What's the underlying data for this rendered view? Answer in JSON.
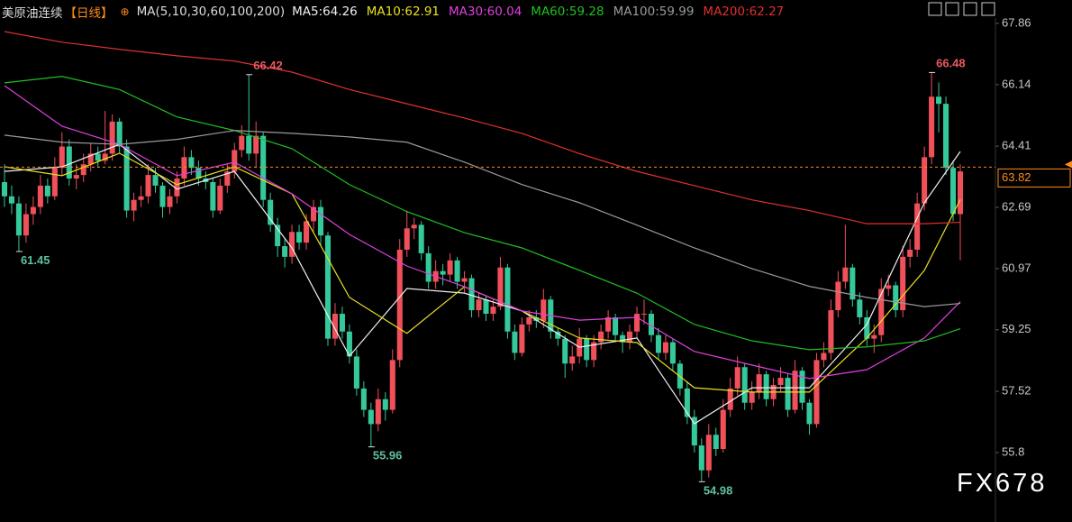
{
  "chart_data": {
    "type": "candlestick",
    "title": "美原油连续",
    "period": "【日线】",
    "indicator": "MA(5,10,30,60,100,200)",
    "watermark": "FX678",
    "up_color": "#f0505a",
    "down_color": "#34c89a",
    "last_price": 63.82,
    "last_price_color": "#ff8c1a",
    "ylim": [
      54.33,
      68.01
    ],
    "yticks": [
      67.86,
      66.14,
      64.41,
      62.69,
      60.97,
      59.25,
      57.52,
      55.8
    ],
    "annotations": [
      66.42,
      61.45,
      55.96,
      54.98,
      66.48
    ],
    "candles": [
      [
        63.4,
        63.9,
        62.7,
        63.0
      ],
      [
        63.0,
        63.3,
        62.5,
        62.8
      ],
      [
        62.8,
        63.0,
        61.45,
        61.9
      ],
      [
        61.9,
        62.8,
        61.7,
        62.5
      ],
      [
        62.5,
        63.0,
        62.2,
        62.7
      ],
      [
        62.7,
        63.6,
        62.5,
        63.3
      ],
      [
        63.3,
        63.5,
        62.8,
        63.0
      ],
      [
        63.0,
        64.1,
        62.9,
        63.8
      ],
      [
        63.8,
        64.8,
        63.6,
        64.4
      ],
      [
        64.4,
        64.6,
        63.3,
        63.5
      ],
      [
        63.5,
        63.9,
        63.2,
        63.6
      ],
      [
        63.6,
        64.2,
        63.4,
        63.9
      ],
      [
        63.9,
        64.5,
        63.7,
        64.2
      ],
      [
        64.2,
        64.4,
        63.8,
        64.0
      ],
      [
        64.0,
        65.4,
        63.9,
        64.2
      ],
      [
        64.2,
        65.3,
        64.0,
        65.1
      ],
      [
        65.1,
        65.2,
        64.2,
        64.4
      ],
      [
        64.4,
        64.6,
        62.4,
        62.6
      ],
      [
        62.6,
        63.1,
        62.3,
        62.9
      ],
      [
        62.9,
        63.3,
        62.7,
        63.0
      ],
      [
        63.0,
        63.9,
        62.8,
        63.6
      ],
      [
        63.6,
        63.8,
        63.1,
        63.3
      ],
      [
        63.3,
        63.4,
        62.4,
        62.7
      ],
      [
        62.7,
        63.2,
        62.5,
        63.0
      ],
      [
        63.0,
        63.7,
        62.8,
        63.5
      ],
      [
        63.5,
        64.4,
        63.3,
        64.1
      ],
      [
        64.1,
        64.3,
        63.6,
        63.8
      ],
      [
        63.8,
        64.0,
        63.3,
        63.5
      ],
      [
        63.5,
        63.7,
        63.2,
        63.4
      ],
      [
        63.4,
        63.5,
        62.4,
        62.6
      ],
      [
        62.6,
        63.5,
        62.5,
        63.3
      ],
      [
        63.3,
        63.9,
        63.1,
        63.7
      ],
      [
        63.7,
        64.5,
        63.5,
        64.3
      ],
      [
        64.3,
        65.0,
        64.1,
        64.7
      ],
      [
        64.7,
        66.42,
        64.0,
        64.2
      ],
      [
        64.2,
        65.1,
        63.8,
        64.7
      ],
      [
        64.7,
        64.8,
        62.7,
        62.9
      ],
      [
        62.9,
        63.1,
        62.0,
        62.2
      ],
      [
        62.2,
        62.4,
        61.3,
        61.6
      ],
      [
        61.6,
        61.8,
        61.0,
        61.3
      ],
      [
        61.3,
        62.2,
        61.1,
        62.0
      ],
      [
        62.0,
        62.2,
        61.5,
        61.7
      ],
      [
        61.7,
        62.5,
        61.5,
        62.3
      ],
      [
        62.3,
        62.9,
        62.0,
        62.7
      ],
      [
        62.7,
        62.9,
        61.6,
        61.9
      ],
      [
        61.9,
        62.0,
        58.8,
        59.0
      ],
      [
        59.0,
        60.0,
        58.8,
        59.7
      ],
      [
        59.7,
        59.9,
        59.0,
        59.2
      ],
      [
        59.2,
        59.4,
        58.3,
        58.5
      ],
      [
        58.5,
        58.7,
        57.4,
        57.6
      ],
      [
        57.6,
        57.8,
        56.8,
        57.0
      ],
      [
        57.0,
        57.2,
        55.96,
        56.6
      ],
      [
        56.6,
        57.6,
        56.4,
        57.3
      ],
      [
        57.3,
        57.5,
        56.7,
        57.0
      ],
      [
        57.0,
        58.7,
        56.9,
        58.4
      ],
      [
        58.4,
        61.8,
        58.2,
        61.5
      ],
      [
        61.5,
        62.6,
        61.3,
        62.1
      ],
      [
        62.1,
        62.4,
        61.8,
        62.2
      ],
      [
        62.2,
        62.3,
        61.2,
        61.4
      ],
      [
        61.4,
        61.6,
        60.4,
        60.6
      ],
      [
        60.6,
        61.2,
        60.4,
        60.9
      ],
      [
        60.9,
        61.1,
        60.5,
        60.8
      ],
      [
        60.8,
        61.4,
        60.6,
        61.2
      ],
      [
        61.2,
        61.3,
        60.4,
        60.6
      ],
      [
        60.6,
        60.9,
        60.3,
        60.7
      ],
      [
        60.7,
        60.8,
        59.6,
        59.8
      ],
      [
        59.8,
        60.3,
        59.6,
        60.1
      ],
      [
        60.1,
        60.2,
        59.5,
        59.7
      ],
      [
        59.7,
        60.1,
        59.5,
        59.9
      ],
      [
        59.9,
        61.3,
        59.8,
        61.0
      ],
      [
        61.0,
        61.1,
        59.0,
        59.2
      ],
      [
        59.2,
        59.4,
        58.4,
        58.6
      ],
      [
        58.6,
        59.6,
        58.5,
        59.4
      ],
      [
        59.4,
        59.8,
        59.2,
        59.6
      ],
      [
        59.6,
        59.8,
        59.3,
        59.5
      ],
      [
        59.5,
        60.4,
        59.3,
        60.1
      ],
      [
        60.1,
        60.2,
        59.0,
        59.2
      ],
      [
        59.2,
        59.3,
        58.8,
        59.0
      ],
      [
        59.0,
        59.1,
        57.9,
        58.3
      ],
      [
        58.3,
        58.8,
        58.1,
        58.5
      ],
      [
        58.5,
        59.3,
        58.3,
        59.0
      ],
      [
        59.0,
        59.1,
        58.2,
        58.4
      ],
      [
        58.4,
        59.1,
        58.2,
        58.9
      ],
      [
        58.9,
        59.4,
        58.7,
        59.2
      ],
      [
        59.2,
        59.8,
        59.0,
        59.6
      ],
      [
        59.6,
        59.7,
        58.9,
        59.1
      ],
      [
        59.1,
        59.2,
        58.6,
        58.9
      ],
      [
        58.9,
        59.4,
        58.7,
        59.2
      ],
      [
        59.2,
        59.9,
        59.0,
        59.7
      ],
      [
        59.7,
        60.1,
        59.4,
        59.7
      ],
      [
        59.7,
        59.8,
        58.9,
        59.1
      ],
      [
        59.1,
        59.3,
        58.4,
        58.6
      ],
      [
        58.6,
        59.1,
        58.4,
        58.9
      ],
      [
        58.9,
        59.0,
        58.1,
        58.3
      ],
      [
        58.3,
        58.4,
        57.4,
        57.6
      ],
      [
        57.6,
        57.8,
        56.6,
        56.8
      ],
      [
        56.8,
        57.0,
        55.8,
        56.0
      ],
      [
        56.0,
        56.2,
        54.98,
        55.3
      ],
      [
        55.3,
        56.6,
        55.1,
        56.3
      ],
      [
        56.3,
        56.5,
        55.7,
        55.9
      ],
      [
        55.9,
        57.3,
        55.8,
        57.0
      ],
      [
        57.0,
        57.9,
        56.8,
        57.6
      ],
      [
        57.6,
        58.5,
        57.4,
        58.2
      ],
      [
        58.2,
        58.3,
        57.0,
        57.2
      ],
      [
        57.2,
        57.8,
        57.0,
        57.5
      ],
      [
        57.5,
        58.3,
        57.3,
        58.0
      ],
      [
        58.0,
        58.1,
        57.1,
        57.3
      ],
      [
        57.3,
        57.9,
        57.1,
        57.7
      ],
      [
        57.7,
        58.2,
        57.5,
        57.9
      ],
      [
        57.9,
        58.0,
        56.8,
        57.0
      ],
      [
        57.0,
        58.4,
        56.9,
        58.1
      ],
      [
        58.1,
        58.2,
        57.0,
        57.2
      ],
      [
        57.2,
        57.3,
        56.3,
        56.6
      ],
      [
        56.6,
        58.6,
        56.5,
        58.4
      ],
      [
        58.4,
        58.9,
        58.2,
        58.6
      ],
      [
        58.6,
        60.1,
        58.4,
        59.8
      ],
      [
        59.8,
        60.9,
        59.6,
        60.6
      ],
      [
        60.6,
        62.2,
        60.4,
        61.0
      ],
      [
        61.0,
        61.1,
        59.9,
        60.1
      ],
      [
        60.1,
        60.3,
        59.4,
        59.6
      ],
      [
        59.6,
        59.8,
        58.8,
        59.0
      ],
      [
        59.0,
        59.4,
        58.6,
        59.1
      ],
      [
        59.1,
        60.7,
        58.9,
        60.4
      ],
      [
        60.4,
        60.8,
        60.2,
        60.5
      ],
      [
        60.5,
        60.6,
        59.6,
        59.8
      ],
      [
        59.8,
        61.6,
        59.6,
        61.3
      ],
      [
        61.3,
        61.8,
        61.0,
        61.5
      ],
      [
        61.5,
        63.1,
        61.3,
        62.8
      ],
      [
        62.8,
        64.4,
        62.6,
        64.1
      ],
      [
        64.1,
        66.48,
        63.9,
        65.8
      ],
      [
        65.8,
        66.2,
        64.8,
        65.6
      ],
      [
        65.6,
        65.8,
        63.6,
        63.8
      ],
      [
        63.8,
        64.0,
        62.3,
        62.5
      ],
      [
        62.5,
        63.9,
        61.2,
        63.7
      ]
    ],
    "x": [
      0,
      8,
      16,
      24,
      32,
      40,
      48,
      56,
      64,
      72,
      80,
      88,
      96,
      104,
      112,
      120,
      128,
      133
    ],
    "series": [
      {
        "name": "MA5:64.26",
        "color": "#f0f0f0",
        "values": [
          63.7,
          63.83,
          64.46,
          63.2,
          63.7,
          61.55,
          58.51,
          60.41,
          60.28,
          59.78,
          58.76,
          59.02,
          56.61,
          57.62,
          57.62,
          59.4,
          62.82,
          64.26
        ]
      },
      {
        "name": "MA10:62.91",
        "color": "#e8e020",
        "values": [
          63.83,
          63.58,
          64.21,
          63.33,
          63.83,
          63.07,
          60.16,
          59.15,
          60.46,
          59.78,
          59.02,
          58.89,
          57.62,
          57.5,
          57.5,
          59.02,
          60.92,
          62.91
        ]
      },
      {
        "name": "MA30:60.04",
        "color": "#e040e0",
        "values": [
          66.11,
          64.97,
          64.46,
          63.58,
          63.96,
          63.07,
          61.93,
          61.04,
          60.46,
          59.78,
          59.52,
          59.6,
          58.64,
          58.26,
          57.88,
          58.13,
          59.02,
          60.04
        ]
      },
      {
        "name": "MA60:59.28",
        "color": "#20c020",
        "values": [
          66.19,
          66.37,
          66.0,
          65.23,
          64.85,
          64.34,
          63.33,
          62.57,
          61.98,
          61.55,
          60.92,
          60.28,
          59.4,
          58.94,
          58.69,
          58.77,
          58.94,
          59.28
        ]
      },
      {
        "name": "MA100:59.99",
        "color": "#9a9a9a",
        "values": [
          64.72,
          64.52,
          64.46,
          64.6,
          64.85,
          64.77,
          64.67,
          64.52,
          63.96,
          63.33,
          62.82,
          62.19,
          61.55,
          60.97,
          60.47,
          60.16,
          59.9,
          59.99
        ]
      },
      {
        "name": "MA200:62.27",
        "color": "#e03030",
        "values": [
          67.63,
          67.33,
          67.13,
          66.95,
          66.8,
          66.49,
          66.0,
          65.6,
          65.2,
          64.77,
          64.2,
          63.7,
          63.3,
          62.9,
          62.6,
          62.23,
          62.23,
          62.27
        ]
      }
    ]
  }
}
